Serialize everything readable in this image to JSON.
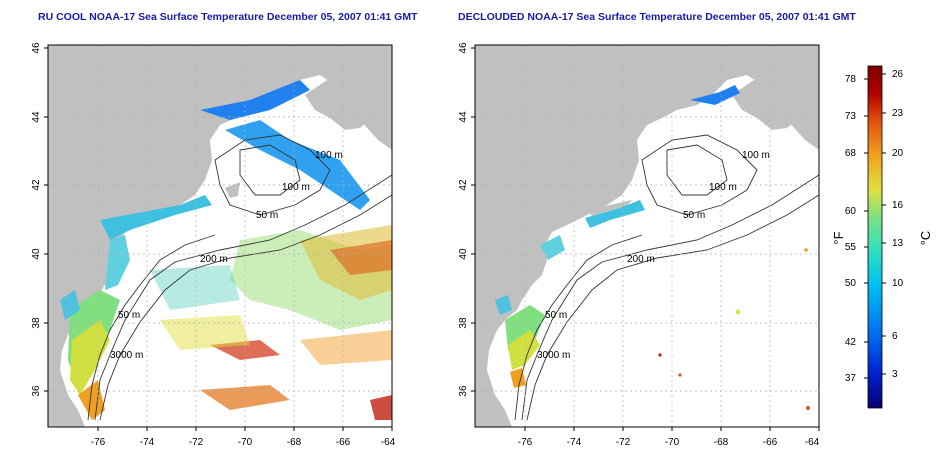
{
  "panels": [
    {
      "title": "RU COOL NOAA-17 Sea Surface Temperature December 05, 2007 01:41 GMT"
    },
    {
      "title": "DECLOUDED NOAA-17 Sea Surface Temperature December 05, 2007 01:41 GMT"
    }
  ],
  "axes": {
    "lat_ticks": [
      "46",
      "44",
      "42",
      "40",
      "38",
      "36"
    ],
    "lon_ticks": [
      "-76",
      "-74",
      "-72",
      "-70",
      "-68",
      "-66",
      "-64"
    ]
  },
  "isobaths": [
    "100 m",
    "100 m",
    "50 m",
    "200 m",
    "50 m",
    "3000 m"
  ],
  "colorbar": {
    "fahrenheit_ticks": [
      "78",
      "73",
      "68",
      "60",
      "55",
      "50",
      "42",
      "37"
    ],
    "celsius_ticks": [
      "26",
      "23",
      "20",
      "16",
      "13",
      "10",
      "6",
      "3"
    ],
    "unit_f": "°F",
    "unit_c": "°C",
    "colors": [
      "#08006e",
      "#0020d0",
      "#0070f0",
      "#00c0f0",
      "#30e0c0",
      "#80e080",
      "#e0e040",
      "#f0a020",
      "#e05010",
      "#b00000",
      "#800000"
    ]
  },
  "colors": {
    "land": "#c0c0c0",
    "title": "#1a1aa6",
    "grid": "#b0b0b0"
  }
}
